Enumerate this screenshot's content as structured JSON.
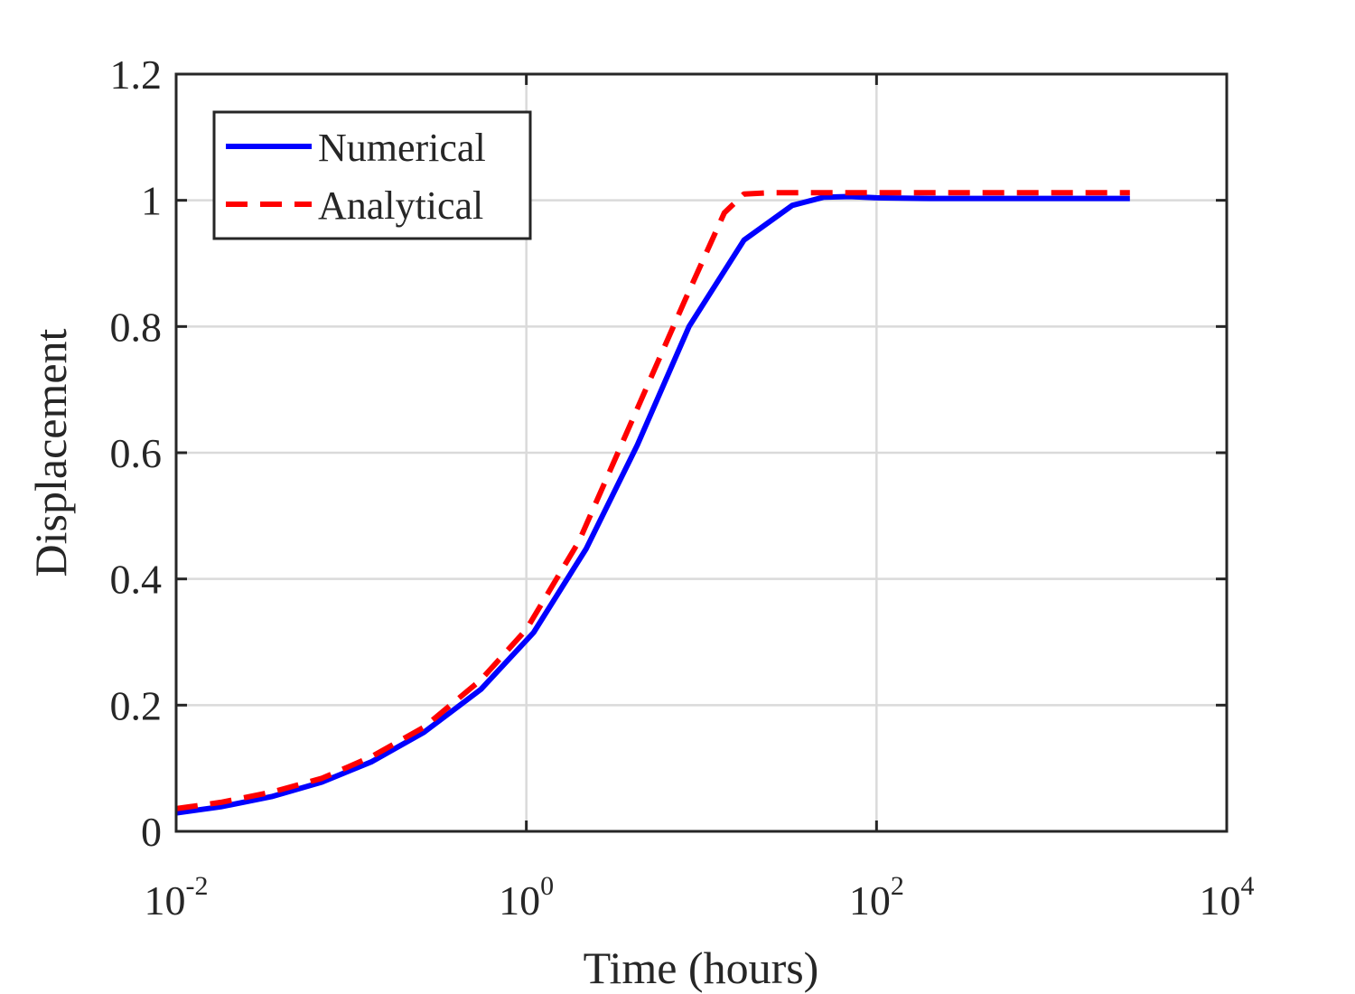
{
  "chart_data": {
    "type": "line",
    "title": "",
    "xlabel": "Time (hours)",
    "ylabel": "Displacement",
    "xscale": "log",
    "xlim": [
      0.01,
      10000
    ],
    "ylim": [
      0,
      1.2
    ],
    "grid": true,
    "legend_position": "top-left",
    "x_ticks": [
      {
        "base": "10",
        "exp": "-2",
        "value": 0.01
      },
      {
        "base": "10",
        "exp": "0",
        "value": 1
      },
      {
        "base": "10",
        "exp": "2",
        "value": 100
      },
      {
        "base": "10",
        "exp": "4",
        "value": 10000
      }
    ],
    "y_ticks": [
      {
        "label": "0",
        "value": 0
      },
      {
        "label": "0.2",
        "value": 0.2
      },
      {
        "label": "0.4",
        "value": 0.4
      },
      {
        "label": "0.6",
        "value": 0.6
      },
      {
        "label": "0.8",
        "value": 0.8
      },
      {
        "label": "1",
        "value": 1.0
      },
      {
        "label": "1.2",
        "value": 1.2
      }
    ],
    "series": [
      {
        "name": "Numerical",
        "color": "#0000ff",
        "style": "solid",
        "x": [
          0.01,
          0.018,
          0.035,
          0.068,
          0.13,
          0.26,
          0.55,
          1.1,
          2.2,
          4.3,
          8.5,
          17.5,
          33,
          50,
          70,
          100,
          200,
          500,
          1000,
          2800
        ],
        "y": [
          0.029,
          0.039,
          0.055,
          0.078,
          0.11,
          0.157,
          0.225,
          0.315,
          0.448,
          0.612,
          0.8,
          0.937,
          0.992,
          1.005,
          1.006,
          1.004,
          1.003,
          1.003,
          1.003,
          1.003
        ]
      },
      {
        "name": "Analytical",
        "color": "#ff0000",
        "style": "dashed",
        "x": [
          0.01,
          0.018,
          0.035,
          0.068,
          0.13,
          0.26,
          0.55,
          1.0,
          2.0,
          4.0,
          8.0,
          13.5,
          17.5,
          25,
          50,
          100,
          500,
          2800
        ],
        "y": [
          0.036,
          0.046,
          0.062,
          0.084,
          0.118,
          0.165,
          0.24,
          0.32,
          0.46,
          0.65,
          0.84,
          0.98,
          1.01,
          1.012,
          1.012,
          1.012,
          1.012,
          1.012
        ]
      }
    ]
  }
}
